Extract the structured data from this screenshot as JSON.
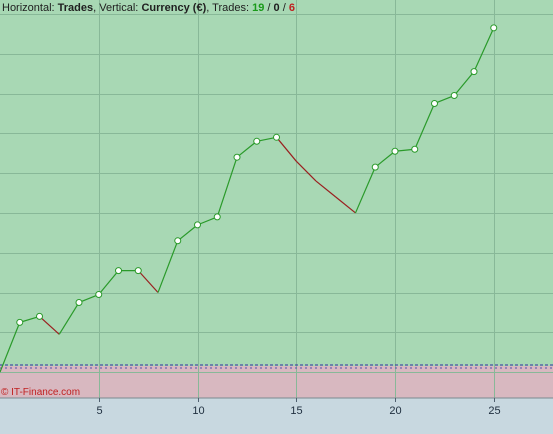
{
  "header": {
    "horizontal_label": "Horizontal:",
    "horizontal_value": "Trades",
    "vertical_label": "Vertical:",
    "vertical_value": "Currency (€)",
    "trades_label": "Trades:",
    "wins": "19",
    "neutral": "0",
    "losses": "6",
    "sep1": ",",
    "sep2": ",",
    "slash": "/"
  },
  "watermark": "© IT-Finance.com",
  "colors": {
    "profit_zone": "#a8d8b4",
    "loss_zone": "#d8b8c0",
    "axis_bg": "#c8d8e0",
    "win_line": "#2a9a2a",
    "loss_line": "#9a2020",
    "grid": "#88b898",
    "baseline": "#3030a0",
    "wins_text": "#1a9a1a",
    "losses_text": "#c02020",
    "watermark": "#c02020"
  },
  "chart_data": {
    "type": "line",
    "x_ticks": [
      "5",
      "10",
      "15",
      "20",
      "25"
    ],
    "xlim": [
      0,
      28
    ],
    "ylim": [
      -1.3,
      18.7
    ],
    "grid": true,
    "series": [
      {
        "x": [
          0,
          1,
          2,
          3,
          4,
          5,
          6,
          7,
          8,
          9,
          10,
          11,
          12,
          13,
          14,
          15,
          16,
          17,
          18,
          19,
          20,
          21,
          22,
          23,
          24,
          25
        ],
        "y": [
          0,
          2.5,
          2.8,
          1.9,
          3.5,
          3.9,
          5.1,
          5.1,
          4.0,
          6.6,
          7.4,
          7.8,
          10.8,
          11.6,
          11.8,
          10.6,
          9.6,
          8.8,
          8.0,
          10.3,
          11.1,
          11.2,
          13.5,
          13.9,
          15.1,
          17.3
        ],
        "outcome": [
          "start",
          "win",
          "win",
          "loss",
          "win",
          "win",
          "win",
          "win",
          "loss",
          "win",
          "win",
          "win",
          "win",
          "win",
          "win",
          "loss",
          "loss",
          "loss",
          "loss",
          "win",
          "win",
          "win",
          "win",
          "win",
          "win",
          "win"
        ]
      }
    ]
  }
}
